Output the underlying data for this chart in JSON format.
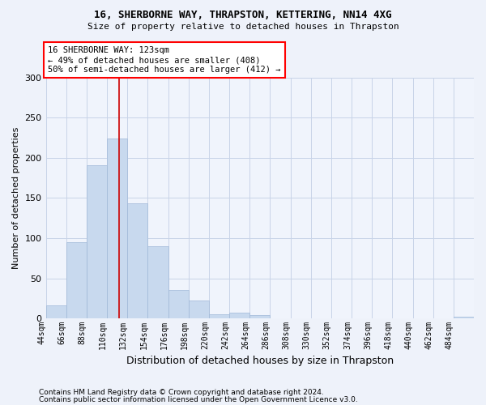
{
  "title1": "16, SHERBORNE WAY, THRAPSTON, KETTERING, NN14 4XG",
  "title2": "Size of property relative to detached houses in Thrapston",
  "xlabel": "Distribution of detached houses by size in Thrapston",
  "ylabel": "Number of detached properties",
  "bar_color": "#c8d9ee",
  "bar_edge_color": "#a0b8d8",
  "property_line_color": "#cc0000",
  "property_line_x": 123,
  "bin_edges": [
    44,
    66,
    88,
    110,
    132,
    154,
    176,
    198,
    220,
    242,
    264,
    286,
    308,
    330,
    352,
    374,
    396,
    418,
    440,
    462,
    484,
    506
  ],
  "bar_values": [
    16,
    95,
    191,
    224,
    143,
    90,
    35,
    22,
    5,
    7,
    4,
    0,
    0,
    0,
    0,
    0,
    0,
    0,
    0,
    0,
    2
  ],
  "x_labels": [
    "44sqm",
    "66sqm",
    "88sqm",
    "110sqm",
    "132sqm",
    "154sqm",
    "176sqm",
    "198sqm",
    "220sqm",
    "242sqm",
    "264sqm",
    "286sqm",
    "308sqm",
    "330sqm",
    "352sqm",
    "374sqm",
    "396sqm",
    "418sqm",
    "440sqm",
    "462sqm",
    "484sqm"
  ],
  "annotation_text": "16 SHERBORNE WAY: 123sqm\n← 49% of detached houses are smaller (408)\n50% of semi-detached houses are larger (412) →",
  "ylim": [
    0,
    300
  ],
  "yticks": [
    0,
    50,
    100,
    150,
    200,
    250,
    300
  ],
  "footer1": "Contains HM Land Registry data © Crown copyright and database right 2024.",
  "footer2": "Contains public sector information licensed under the Open Government Licence v3.0.",
  "bg_color": "#eef2fa",
  "plot_bg_color": "#f0f4fc",
  "grid_color": "#c8d4e8"
}
